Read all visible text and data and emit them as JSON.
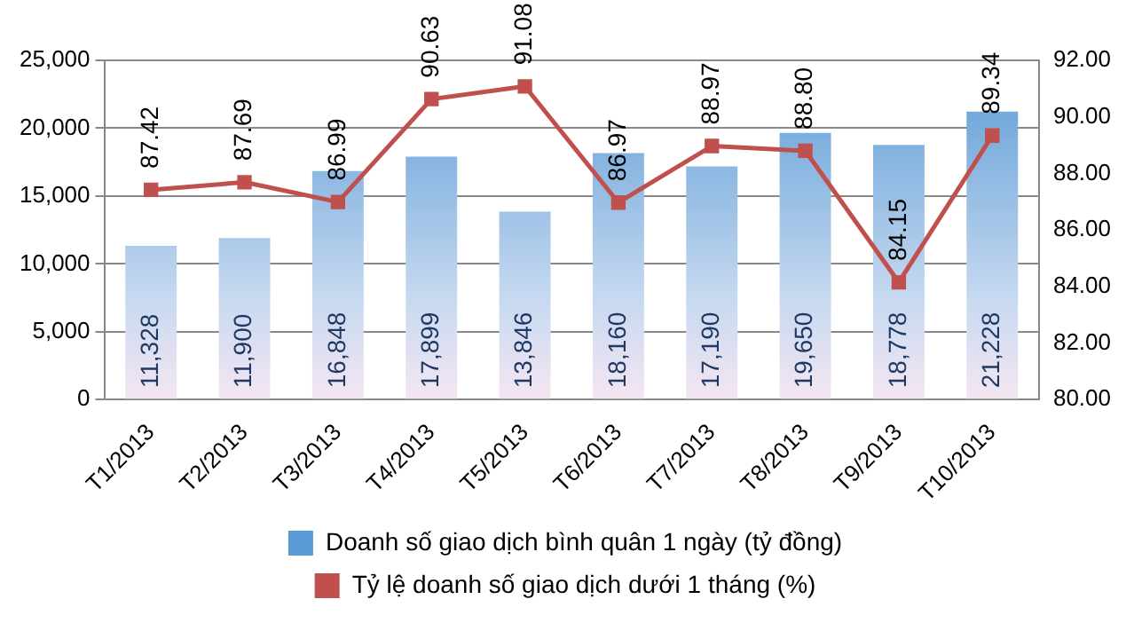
{
  "chart_data": {
    "type": "bar",
    "categories": [
      "T1/2013",
      "T2/2013",
      "T3/2013",
      "T4/2013",
      "T5/2013",
      "T6/2013",
      "T7/2013",
      "T8/2013",
      "T9/2013",
      "T10/2013"
    ],
    "series": [
      {
        "name": "Doanh số giao dịch bình quân 1 ngày (tỷ đồng)",
        "color": "#5b9bd5",
        "values": [
          11328,
          11900,
          16848,
          17899,
          13846,
          18160,
          17190,
          19650,
          18778,
          21228
        ],
        "value_labels": [
          "11,328",
          "11,900",
          "16,848",
          "17,899",
          "13,846",
          "18,160",
          "17,190",
          "19,650",
          "18,778",
          "21,228"
        ]
      },
      {
        "name": "Tỷ lệ doanh số giao dịch dưới 1 tháng (%)",
        "type": "line",
        "axis": "y2",
        "color": "#c0504d",
        "marker": "square",
        "values": [
          87.42,
          87.69,
          86.99,
          90.63,
          91.08,
          86.97,
          88.97,
          88.8,
          84.15,
          89.34
        ],
        "value_labels": [
          "87.42",
          "87.69",
          "86.99",
          "90.63",
          "91.08",
          "86.97",
          "88.97",
          "88.80",
          "84.15",
          "89.34"
        ]
      }
    ],
    "ylim": [
      0,
      25000
    ],
    "yticks": [
      0,
      {
        "value": 5000,
        "label": "5,000"
      },
      {
        "value": 10000,
        "label": "10,000"
      },
      {
        "value": 15000,
        "label": "15,000"
      },
      {
        "value": 20000,
        "label": "20,000"
      },
      {
        "value": 25000,
        "label": "25,000"
      }
    ],
    "y2lim": [
      80,
      92
    ],
    "y2ticks": [
      {
        "value": 80,
        "label": "80.00"
      },
      {
        "value": 82,
        "label": "82.00"
      },
      {
        "value": 84,
        "label": "84.00"
      },
      {
        "value": 86,
        "label": "86.00"
      },
      {
        "value": 88,
        "label": "88.00"
      },
      {
        "value": 90,
        "label": "90.00"
      },
      {
        "value": 92,
        "label": "92.00"
      }
    ],
    "grid": "y",
    "legend": "bottom"
  }
}
